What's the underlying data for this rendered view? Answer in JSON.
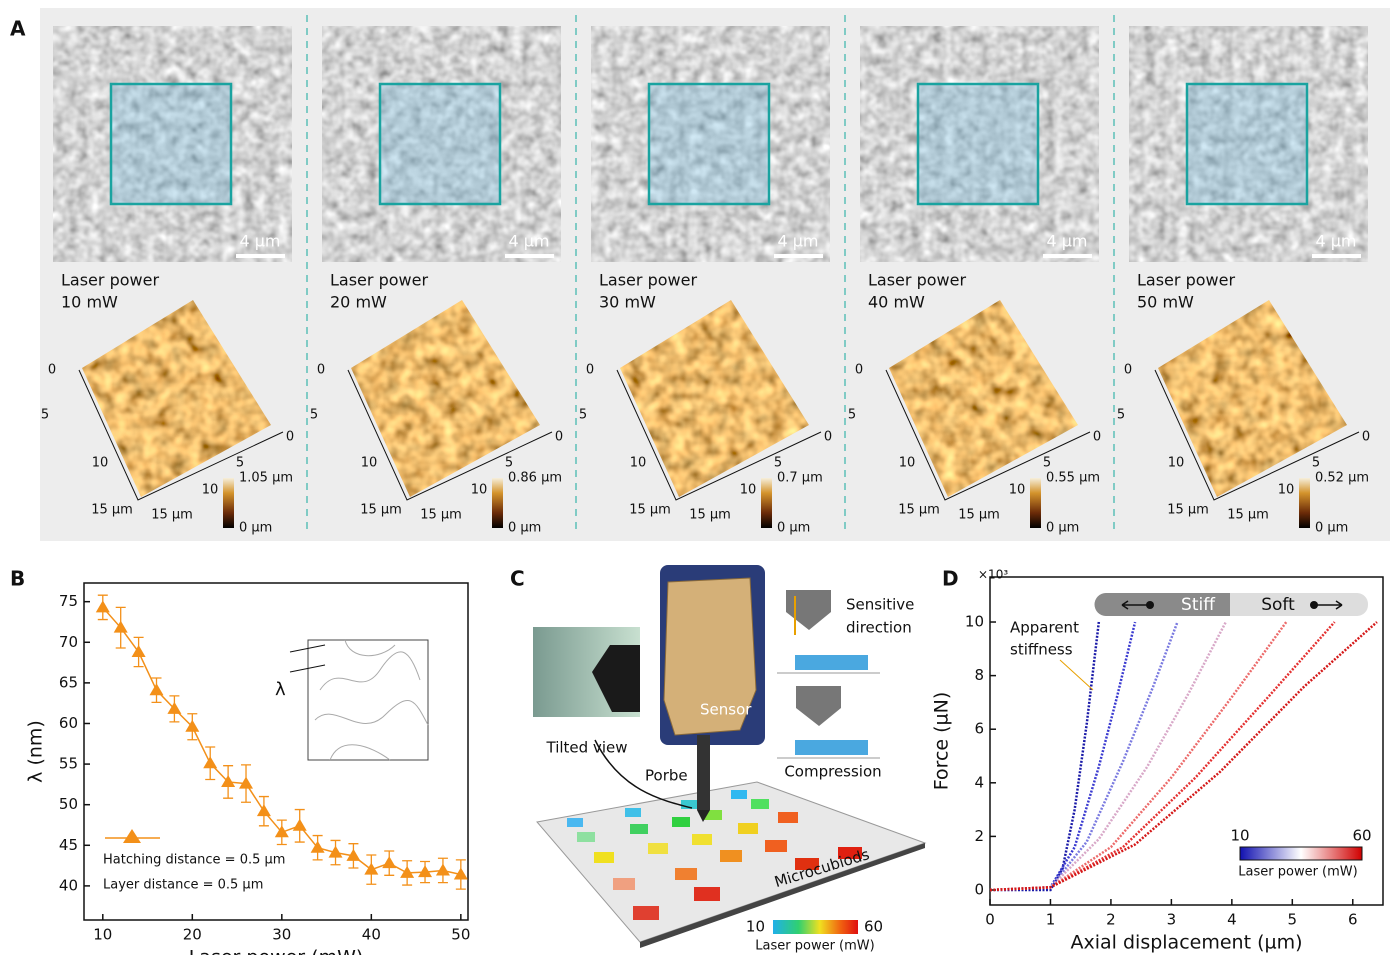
{
  "panel_labels": [
    "A",
    "B",
    "C",
    "D"
  ],
  "panel_a": {
    "power_caption": "Laser power",
    "scale_bar": "4 µm",
    "height_min": "0 µm",
    "axis_ticks": [
      "0",
      "5",
      "10"
    ],
    "axis_end": "15 µm",
    "columns": [
      {
        "power": "10 mW",
        "height_max": "1.05 µm"
      },
      {
        "power": "20 mW",
        "height_max": "0.86 µm"
      },
      {
        "power": "30 mW",
        "height_max": "0.7 µm"
      },
      {
        "power": "40 mW",
        "height_max": "0.55 µm"
      },
      {
        "power": "50 mW",
        "height_max": "0.52 µm"
      }
    ]
  },
  "panel_c": {
    "sensor": "Sensor",
    "tilted_view": "Tilted view",
    "probe": "Porbe",
    "platform": "Microcubiods",
    "sensitive_direction": [
      "Sensitive",
      "direction"
    ],
    "compression": "Compression",
    "colorbar": {
      "ticks": [
        10,
        60
      ],
      "label": "Laser power (mW)"
    }
  },
  "chart_data": [
    {
      "type": "line",
      "xlabel": "Laser power (mW)",
      "ylabel": "λ (nm)",
      "x": [
        10,
        12,
        14,
        16,
        18,
        20,
        22,
        24,
        26,
        28,
        30,
        32,
        34,
        36,
        38,
        40,
        42,
        44,
        46,
        48,
        50
      ],
      "series": [
        {
          "color": "#f39019",
          "values": [
            74.3,
            71.8,
            68.8,
            64.1,
            61.8,
            59.6,
            55.1,
            52.8,
            52.6,
            49.2,
            46.6,
            47.4,
            44.7,
            44.1,
            43.7,
            42.0,
            42.8,
            41.6,
            41.7,
            41.9,
            41.4
          ],
          "errors": [
            1.5,
            2.5,
            1.8,
            1.5,
            1.6,
            1.6,
            2.0,
            2.0,
            2.3,
            1.8,
            1.5,
            2.0,
            1.5,
            1.5,
            1.5,
            1.8,
            1.5,
            1.5,
            1.3,
            1.5,
            1.8
          ]
        }
      ],
      "xlim": [
        7.9,
        50.8
      ],
      "ylim": [
        35.8,
        77.3
      ],
      "xticks": [
        10,
        20,
        30,
        40,
        50
      ],
      "yticks": [
        40,
        45,
        50,
        55,
        60,
        65,
        70,
        75
      ],
      "legend_lines": [
        "Hatching distance = 0.5 µm",
        "Layer distance = 0.5 µm"
      ],
      "inset_label": "λ"
    },
    {
      "type": "line",
      "xlabel": "Axial displacement (µm)",
      "ylabel": "Force (µN)",
      "y_multiplier": "×10³",
      "series": [
        {
          "color": "#1a1aa8",
          "x": [
            0,
            1,
            1.2,
            1.4,
            1.6,
            1.8
          ],
          "values": [
            0,
            0,
            0.8,
            3,
            6.2,
            10
          ]
        },
        {
          "color": "#3a3ad0",
          "x": [
            0,
            1,
            1.4,
            1.8,
            2.1,
            2.4
          ],
          "values": [
            0,
            0.1,
            1.6,
            4.6,
            7.2,
            10
          ]
        },
        {
          "color": "#7a7ae0",
          "x": [
            0,
            1,
            1.6,
            2.2,
            2.7,
            3.1
          ],
          "values": [
            0,
            0.1,
            1.8,
            4.8,
            7.6,
            10
          ]
        },
        {
          "color": "#d8a8c8",
          "x": [
            0,
            1,
            1.8,
            2.6,
            3.3,
            3.9
          ],
          "values": [
            0,
            0.1,
            1.9,
            4.6,
            7.4,
            10
          ]
        },
        {
          "color": "#ec6a6a",
          "x": [
            0,
            1,
            2,
            3,
            4,
            4.9
          ],
          "values": [
            0,
            0.1,
            1.6,
            4.2,
            7.2,
            10
          ]
        },
        {
          "color": "#e43030",
          "x": [
            0,
            1,
            2.2,
            3.4,
            4.6,
            5.7
          ],
          "values": [
            0,
            0.1,
            1.6,
            4.2,
            7.2,
            10
          ]
        },
        {
          "color": "#d41818",
          "x": [
            0,
            1,
            2.4,
            3.8,
            5.2,
            6.4
          ],
          "values": [
            0,
            0.1,
            1.7,
            4.4,
            7.6,
            10
          ]
        }
      ],
      "xlim": [
        0,
        6.5
      ],
      "ylim": [
        -0.56,
        11.68
      ],
      "xticks": [
        0,
        1,
        2,
        3,
        4,
        5,
        6
      ],
      "yticks": [
        0,
        2,
        4,
        6,
        8,
        10
      ],
      "annotation": [
        "Apparent",
        "stiffness"
      ],
      "stiffness_bar": [
        "Stiff",
        "Soft"
      ],
      "colorbar": {
        "ticks": [
          10,
          60
        ],
        "label": "Laser power (mW)"
      }
    }
  ]
}
